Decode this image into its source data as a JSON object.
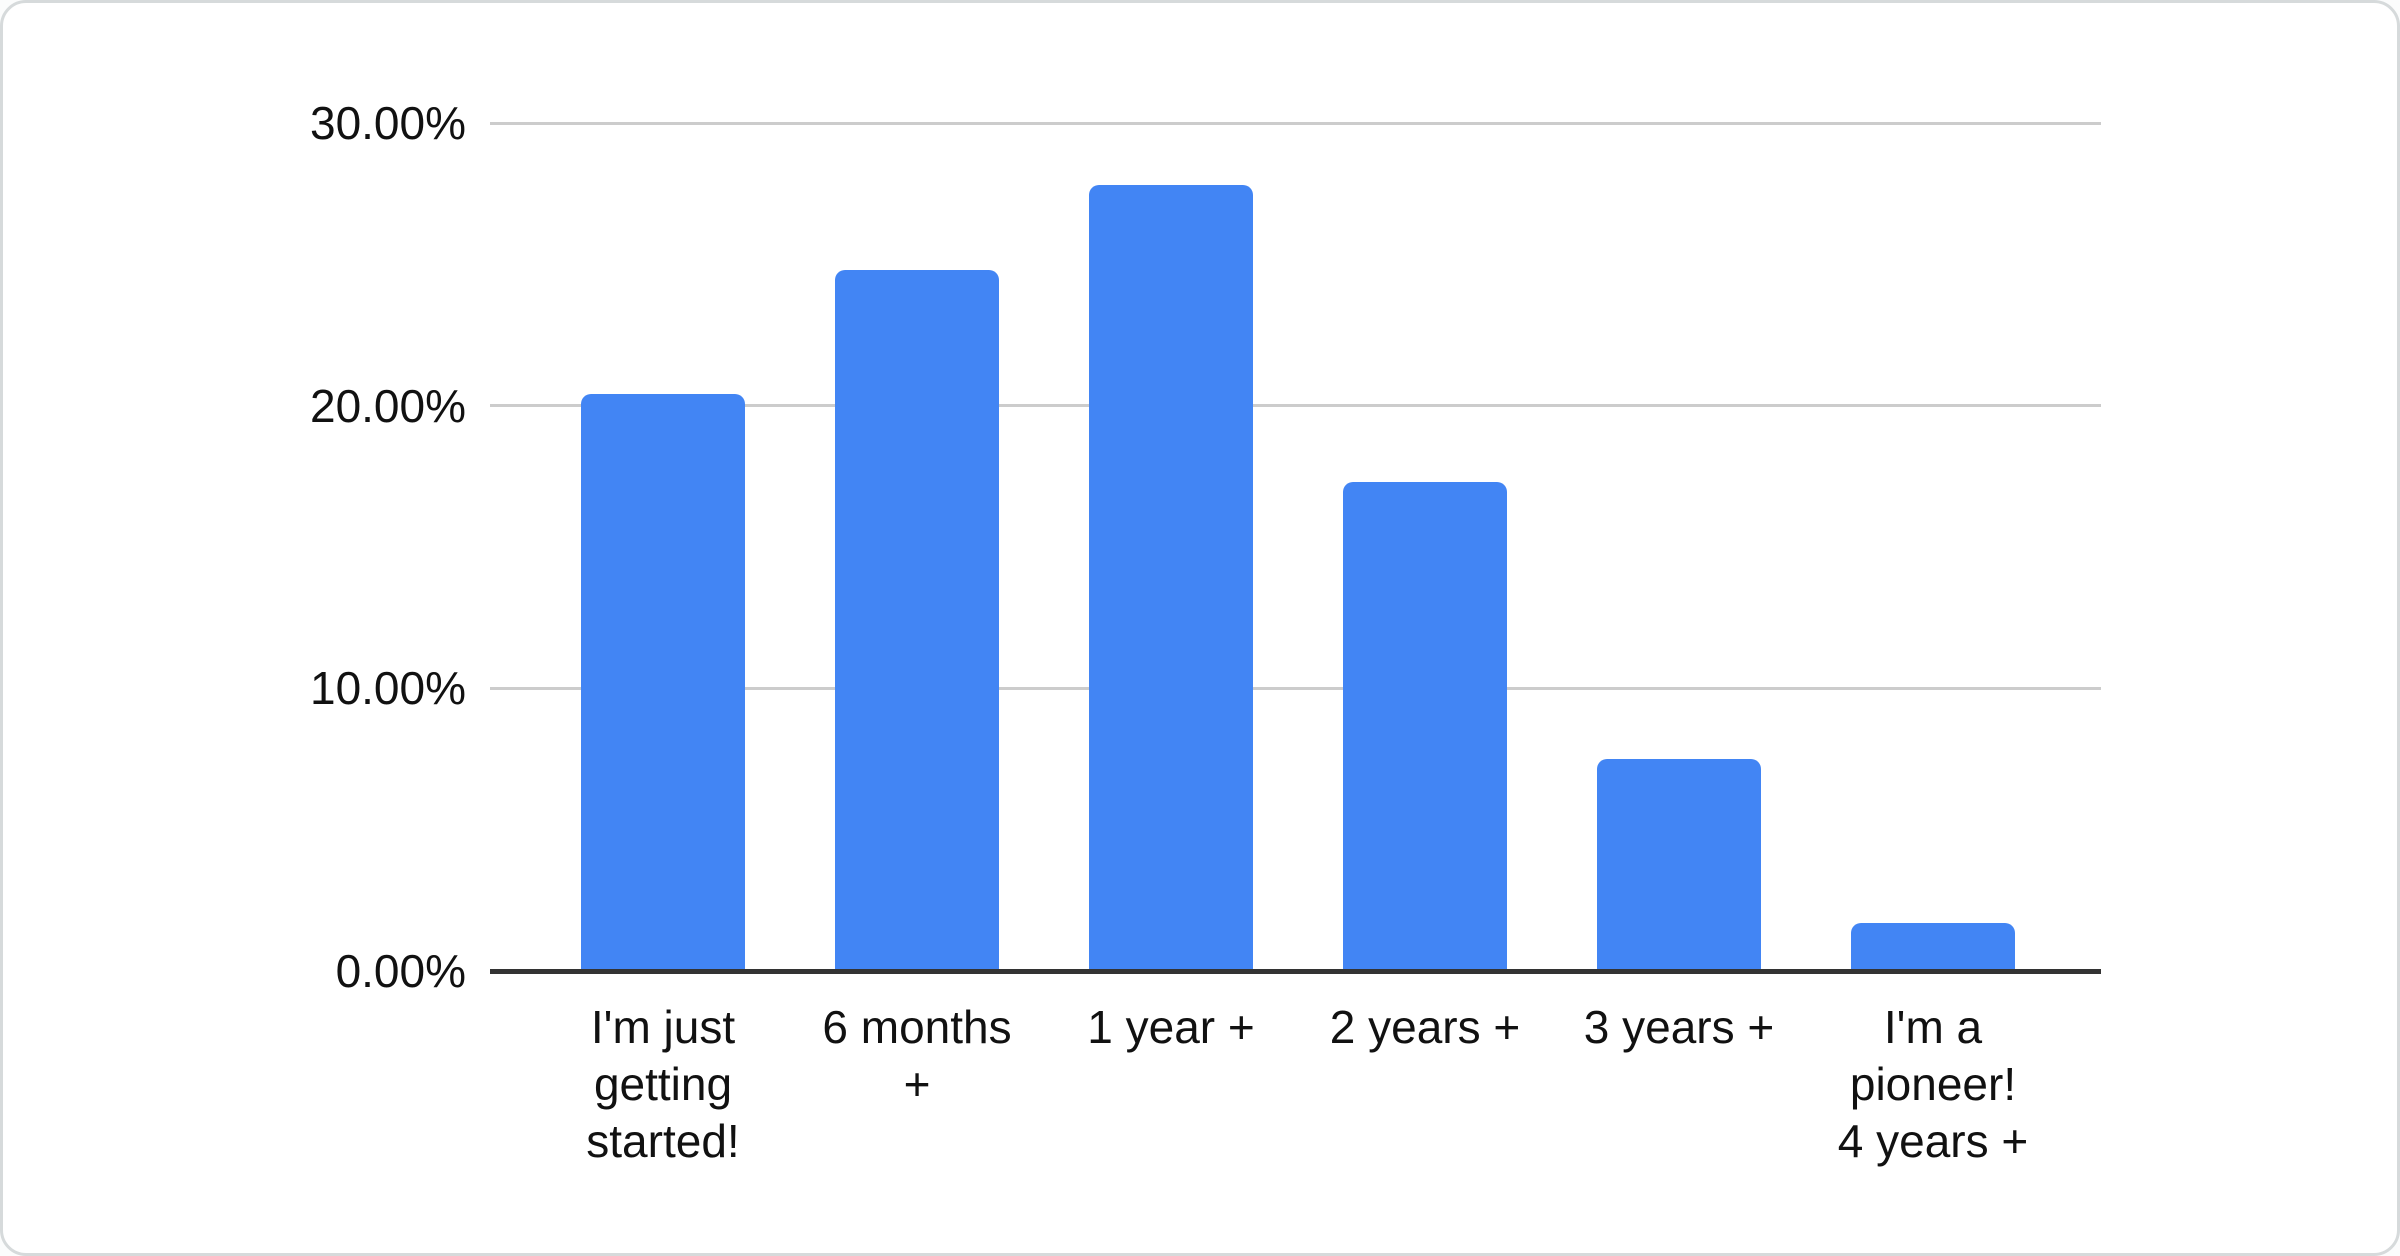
{
  "chart_data": {
    "type": "bar",
    "title": "",
    "xlabel": "",
    "ylabel": "",
    "categories": [
      "I'm just\ngetting\nstarted!",
      "6 months\n+",
      "1 year +",
      "2 years +",
      "3 years +",
      "I'm a\npioneer!\n4 years +"
    ],
    "values": [
      20.4,
      24.8,
      27.8,
      17.3,
      7.5,
      1.7
    ],
    "unit": "%",
    "ylim": [
      0,
      30
    ],
    "yticks": [
      {
        "value": 0,
        "label": "0.00%"
      },
      {
        "value": 10,
        "label": "10.00%"
      },
      {
        "value": 20,
        "label": "20.00%"
      },
      {
        "value": 30,
        "label": "30.00%"
      }
    ],
    "grid": true,
    "legend": "none",
    "series_color": "#4285f4"
  },
  "colors": {
    "bar": "#4285f4",
    "gridline": "#cccccc",
    "axis_line": "#333333",
    "label_text": "#111111",
    "card_background": "#ffffff",
    "card_border": "#d6dadb"
  }
}
